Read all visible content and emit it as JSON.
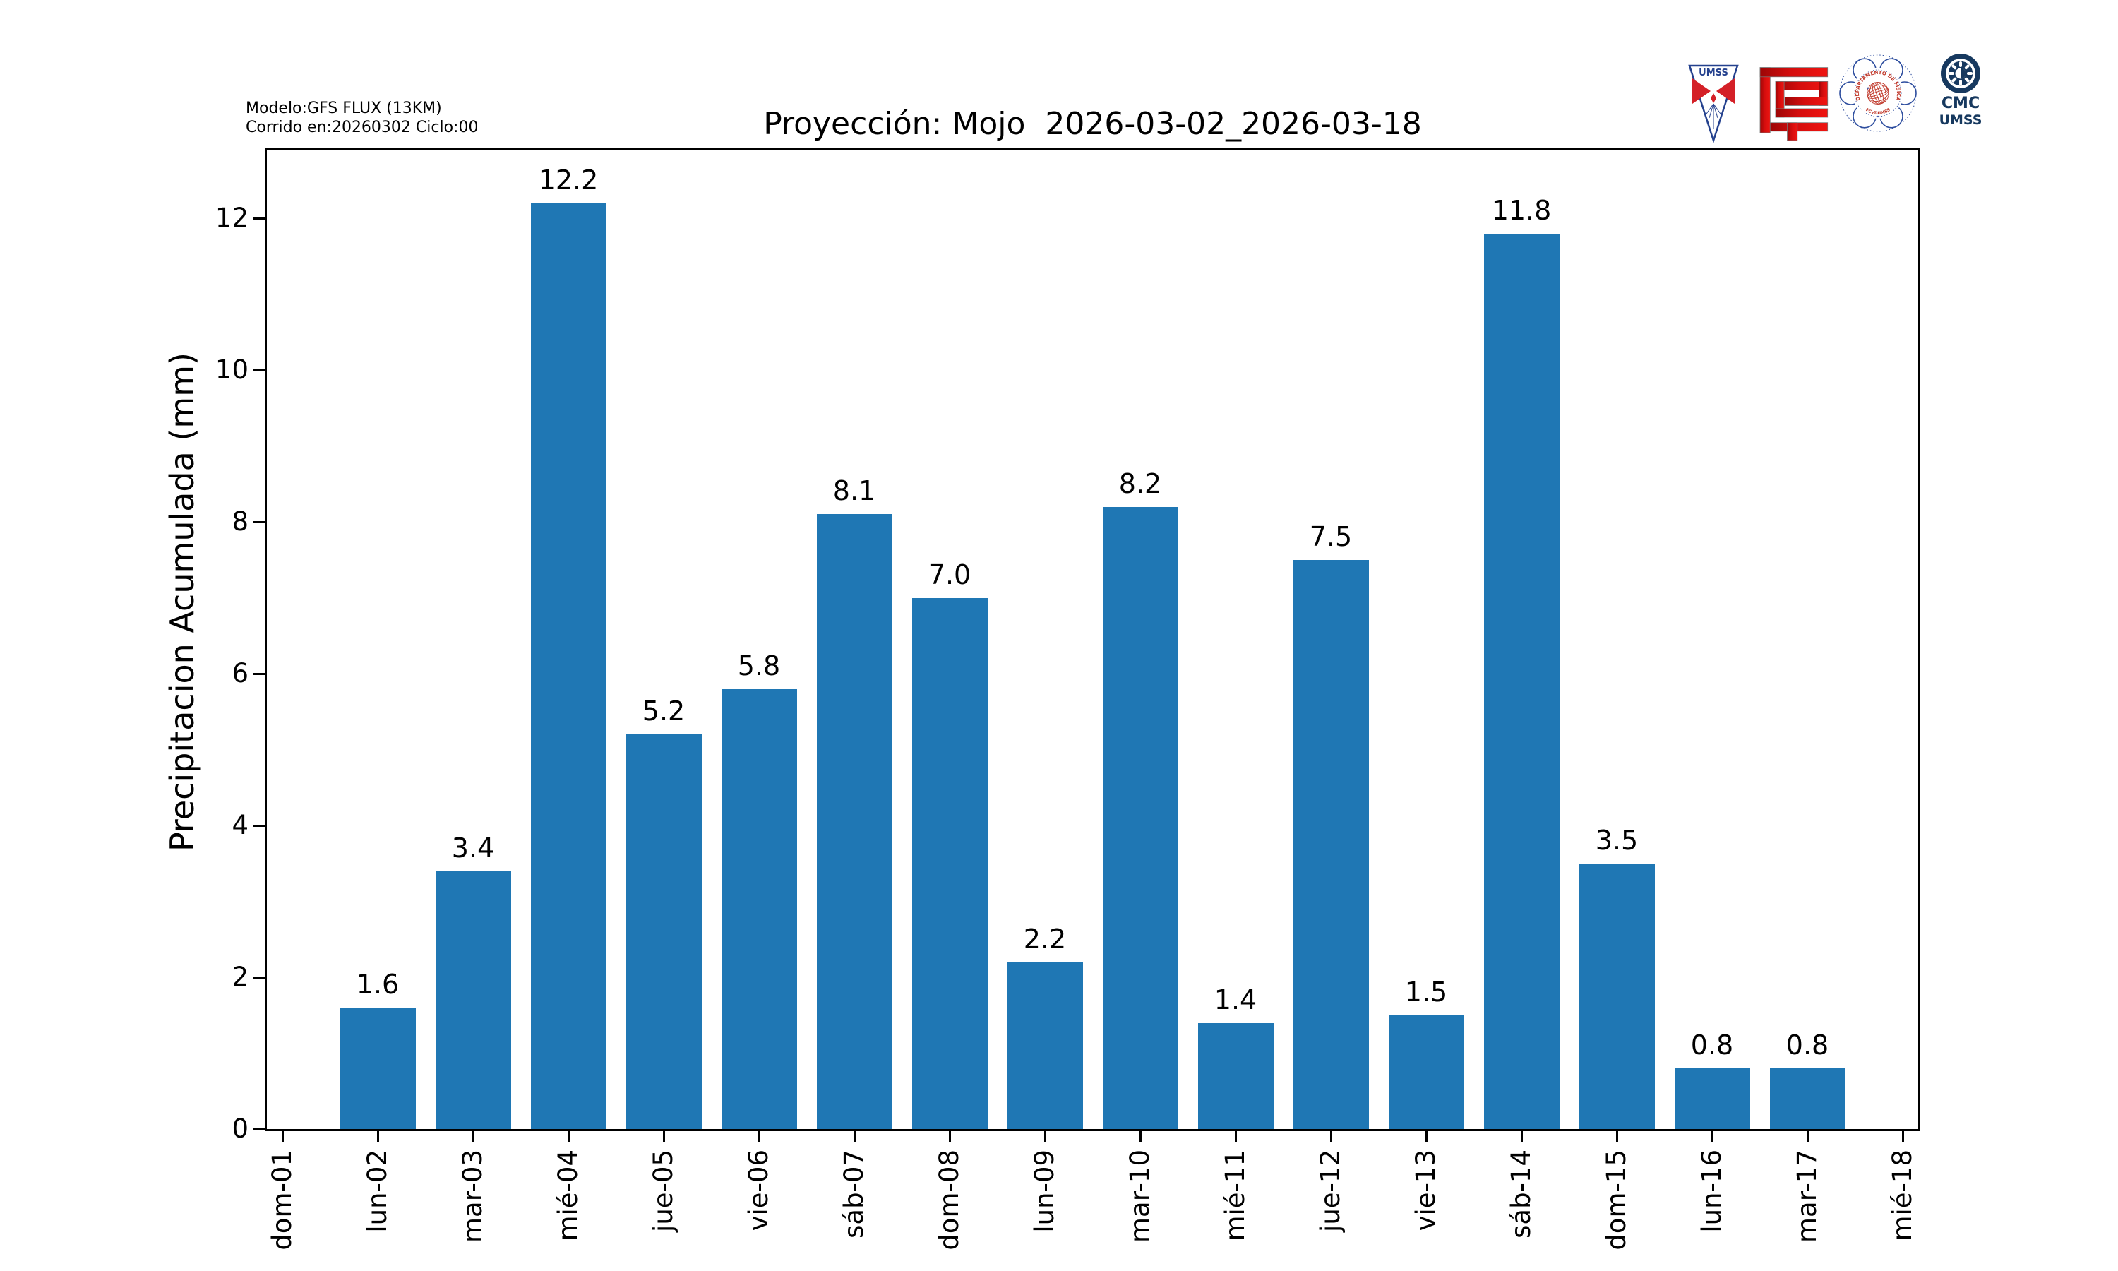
{
  "header": {
    "model_line1": "Modelo:GFS FLUX (13KM)",
    "model_line2": "Corrido en:20260302 Ciclo:00"
  },
  "chart_data": {
    "type": "bar",
    "title": "Proyección: Mojo  2026-03-02_2026-03-18",
    "ylabel": "Precipitacion Acumulada (mm)",
    "xlabel": "",
    "categories": [
      "dom-01",
      "lun-02",
      "mar-03",
      "mié-04",
      "jue-05",
      "vie-06",
      "sáb-07",
      "dom-08",
      "lun-09",
      "mar-10",
      "mié-11",
      "jue-12",
      "vie-13",
      "sáb-14",
      "dom-15",
      "lun-16",
      "mar-17",
      "mié-18"
    ],
    "values": [
      0,
      1.6,
      3.4,
      12.2,
      5.2,
      5.8,
      8.1,
      7.0,
      2.2,
      8.2,
      1.4,
      7.5,
      1.5,
      11.8,
      3.5,
      0.8,
      0.8,
      0
    ],
    "bar_labels": [
      "",
      "1.6",
      "3.4",
      "12.2",
      "5.2",
      "5.8",
      "8.1",
      "7.0",
      "2.2",
      "8.2",
      "1.4",
      "7.5",
      "1.5",
      "11.8",
      "3.5",
      "0.8",
      "0.8",
      ""
    ],
    "yticks": [
      0,
      2,
      4,
      6,
      8,
      10,
      12
    ],
    "ylim": [
      0,
      12.95
    ],
    "grid": false,
    "legend_position": "none",
    "bar_color": "#1f77b4"
  },
  "logos": {
    "pennant_text": "UMSS",
    "seal_text_top": "DEPARTAMENTO DE FÍSICA",
    "seal_text_bottom": "FCyT-UMSS",
    "cmc_line1": "CMC",
    "cmc_line2": "UMSS"
  },
  "colors": {
    "bar": "#1f77b4",
    "axis": "#000000",
    "logo_red": "#d40d0d",
    "logo_red_dark": "#9c0606",
    "logo_blue": "#24418e",
    "seal_blue": "#2d4d9e",
    "seal_red": "#c0392b",
    "cmc_navy": "#17395f"
  }
}
